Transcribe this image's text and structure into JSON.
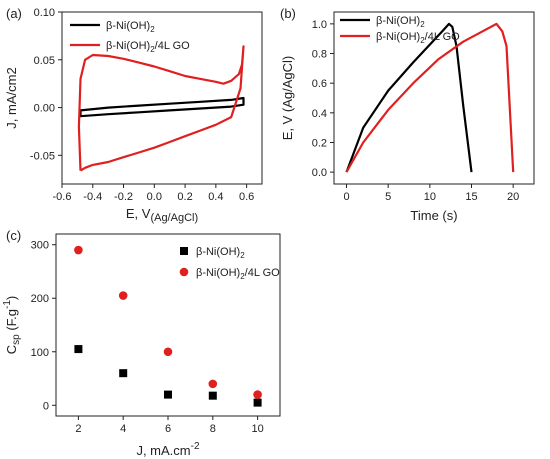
{
  "chart_data": [
    {
      "panel": "(a)",
      "type": "line",
      "xlabel": "E, V",
      "xlabel_sub": "(Ag/AgCl)",
      "ylabel": "J, mA/cm2",
      "xlim": [
        -0.6,
        0.7
      ],
      "ylim": [
        -0.08,
        0.1
      ],
      "xticks": [
        "-0.6",
        "-0.4",
        "-0.2",
        "0.0",
        "0.2",
        "0.4",
        "0.6"
      ],
      "xtick_values": [
        -0.6,
        -0.4,
        -0.2,
        0.0,
        0.2,
        0.4,
        0.6
      ],
      "yticks": [
        "-0.05",
        "0.00",
        "0.05",
        "0.10"
      ],
      "ytick_values": [
        -0.05,
        0.0,
        0.05,
        0.1
      ],
      "legend_position": "top-left",
      "series": [
        {
          "name": "β-Ni(OH)2",
          "name_parts": [
            "β-Ni(OH)",
            "2",
            ""
          ],
          "color": "#000000",
          "x": [
            -0.48,
            -0.3,
            -0.1,
            0.1,
            0.3,
            0.5,
            0.58,
            0.58,
            0.5,
            0.3,
            0.1,
            -0.1,
            -0.3,
            -0.48,
            -0.48
          ],
          "y": [
            -0.003,
            0.0,
            0.002,
            0.004,
            0.006,
            0.008,
            0.01,
            0.003,
            0.001,
            -0.001,
            -0.003,
            -0.005,
            -0.007,
            -0.009,
            -0.003
          ]
        },
        {
          "name": "β-Ni(OH)2/4L GO",
          "name_parts": [
            "β-Ni(OH)",
            "2",
            "/4L GO"
          ],
          "color": "#e02020",
          "x": [
            -0.48,
            -0.45,
            -0.4,
            -0.3,
            -0.2,
            -0.1,
            0.0,
            0.1,
            0.2,
            0.3,
            0.4,
            0.5,
            0.56,
            0.58,
            0.57,
            0.55,
            0.5,
            0.45,
            0.4,
            0.3,
            0.2,
            0.1,
            0.0,
            -0.1,
            -0.2,
            -0.3,
            -0.4,
            -0.45,
            -0.48,
            -0.49,
            -0.48
          ],
          "y": [
            -0.066,
            -0.063,
            -0.06,
            -0.057,
            -0.052,
            -0.047,
            -0.042,
            -0.036,
            -0.03,
            -0.024,
            -0.018,
            -0.01,
            0.02,
            0.064,
            0.045,
            0.035,
            0.028,
            0.025,
            0.027,
            0.03,
            0.033,
            0.038,
            0.043,
            0.047,
            0.051,
            0.054,
            0.055,
            0.05,
            0.03,
            -0.02,
            -0.066
          ]
        }
      ]
    },
    {
      "panel": "(b)",
      "type": "line",
      "xlabel": "Time (s)",
      "ylabel": "E, V (Ag/AgCl)",
      "xlim": [
        -1.5,
        22.5
      ],
      "ylim": [
        -0.08,
        1.08
      ],
      "xticks": [
        "0",
        "5",
        "10",
        "15",
        "20"
      ],
      "xtick_values": [
        0,
        5,
        10,
        15,
        20
      ],
      "yticks": [
        "0.0",
        "0.2",
        "0.4",
        "0.6",
        "0.8",
        "1.0"
      ],
      "ytick_values": [
        0.0,
        0.2,
        0.4,
        0.6,
        0.8,
        1.0
      ],
      "legend_position": "top-left",
      "series": [
        {
          "name": "β-Ni(OH)2",
          "name_parts": [
            "β-Ni(OH)",
            "2",
            ""
          ],
          "color": "#000000",
          "x": [
            0,
            2,
            5,
            8,
            10,
            11.5,
            12.3,
            12.7,
            13.2,
            14,
            15
          ],
          "y": [
            0.0,
            0.3,
            0.55,
            0.74,
            0.86,
            0.95,
            1.0,
            0.98,
            0.85,
            0.45,
            0.0
          ]
        },
        {
          "name": "β-Ni(OH)2/4L GO",
          "name_parts": [
            "β-Ni(OH)",
            "2",
            "/4L GO"
          ],
          "color": "#e02020",
          "x": [
            0,
            2,
            5,
            8,
            11,
            14,
            16,
            18,
            18.7,
            19.2,
            20
          ],
          "y": [
            0.0,
            0.2,
            0.42,
            0.6,
            0.76,
            0.88,
            0.94,
            1.0,
            0.95,
            0.85,
            0.0
          ]
        }
      ]
    },
    {
      "panel": "(c)",
      "type": "scatter",
      "xlabel": "J, mA.cm",
      "xlabel_sup": "-2",
      "ylabel": "C",
      "ylabel_sub": "sp",
      "ylabel_rest": " (F.g",
      "ylabel_sup": "-1",
      "ylabel_end": ")",
      "xlim": [
        1,
        11
      ],
      "ylim": [
        -20,
        320
      ],
      "xticks": [
        "2",
        "4",
        "6",
        "8",
        "10"
      ],
      "xtick_values": [
        2,
        4,
        6,
        8,
        10
      ],
      "yticks": [
        "0",
        "100",
        "200",
        "300"
      ],
      "ytick_values": [
        0,
        100,
        200,
        300
      ],
      "legend_position": "top-right",
      "series": [
        {
          "name": "β-Ni(OH)2",
          "name_parts": [
            "β-Ni(OH)",
            "2",
            ""
          ],
          "color": "#000000",
          "marker": "square",
          "x": [
            2,
            4,
            6,
            8,
            10
          ],
          "y": [
            105,
            60,
            20,
            18,
            5
          ]
        },
        {
          "name": "β-Ni(OH)2/4L GO",
          "name_parts": [
            "β-Ni(OH)",
            "2",
            "/4L GO"
          ],
          "color": "#e02020",
          "marker": "circle",
          "x": [
            2,
            4,
            6,
            8,
            10
          ],
          "y": [
            290,
            205,
            100,
            40,
            20
          ]
        }
      ]
    }
  ]
}
